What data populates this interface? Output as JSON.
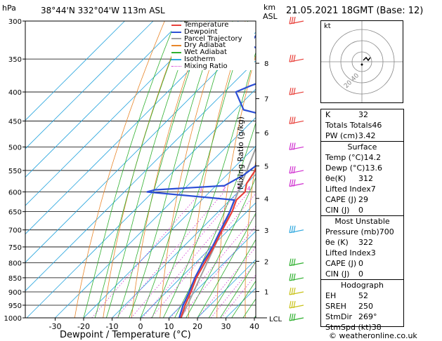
{
  "header": {
    "location": "38°44'N  332°04'W  113m  ASL",
    "datetime": "21.05.2021  18GMT  (Base: 12)",
    "hpa_label": "hPa",
    "km_label": "km",
    "asl_label": "ASL",
    "copyright": "© weatheronline.co.uk"
  },
  "chart_data": {
    "type": "line",
    "xlabel": "Dewpoint / Temperature (°C)",
    "ylabel": "hPa",
    "right_ylabel": "Mixing Ratio (g/kg)",
    "xlim": [
      -35,
      40
    ],
    "ylim": [
      1000,
      300
    ],
    "y_scale": "log",
    "skew": "temperature lines skewed 45°",
    "x_ticks": [
      "-30",
      "-20",
      "-10",
      "0",
      "10",
      "20",
      "30",
      "40"
    ],
    "x_tick_values": [
      -30,
      -20,
      -10,
      0,
      10,
      20,
      30,
      40
    ],
    "pressure_levels": [
      300,
      350,
      400,
      450,
      500,
      550,
      600,
      650,
      700,
      750,
      800,
      850,
      900,
      950,
      1000
    ],
    "pressure_labels": [
      "300",
      "350",
      "400",
      "450",
      "500",
      "550",
      "600",
      "650",
      "700",
      "750",
      "800",
      "850",
      "900",
      "950",
      "1000"
    ],
    "km_ticks": [
      {
        "km": "8",
        "p": 356
      },
      {
        "km": "7",
        "p": 411
      },
      {
        "km": "6",
        "p": 472
      },
      {
        "km": "5",
        "p": 540
      },
      {
        "km": "4",
        "p": 616
      },
      {
        "km": "3",
        "p": 701
      },
      {
        "km": "2",
        "p": 795
      },
      {
        "km": "1",
        "p": 899
      }
    ],
    "lcl_label": "LCL",
    "lcl_p": 1000,
    "mixing_ratio_labels": [
      "1",
      "2",
      "3",
      "4",
      "5",
      "8",
      "10",
      "15",
      "20",
      "25"
    ],
    "mixing_ratio_values": [
      1,
      2,
      3,
      4,
      5,
      8,
      10,
      15,
      20,
      25
    ],
    "legend": [
      "Temperature",
      "Dewpoint",
      "Parcel Trajectory",
      "Dry Adiabat",
      "Wet Adiabat",
      "Isotherm",
      "Mixing Ratio"
    ],
    "colors": {
      "temperature": "#e8403a",
      "dewpoint": "#2d4fd6",
      "parcel": "#a0a0a0",
      "dry_adiabat": "#e8862a",
      "wet_adiabat": "#2fb02f",
      "isotherm": "#2ba6de",
      "mixing_ratio": "#d02fd0"
    },
    "series": [
      {
        "name": "Temperature",
        "points": [
          [
            1000,
            14.2
          ],
          [
            950,
            11.2
          ],
          [
            900,
            8.6
          ],
          [
            850,
            5.5
          ],
          [
            800,
            3.2
          ],
          [
            750,
            0.8
          ],
          [
            700,
            -2.2
          ],
          [
            650,
            -5.2
          ],
          [
            620,
            -7.8
          ],
          [
            600,
            -7.6
          ],
          [
            580,
            -10
          ],
          [
            550,
            -11.6
          ],
          [
            500,
            -16.8
          ],
          [
            450,
            -22
          ],
          [
            400,
            -29
          ],
          [
            350,
            -38
          ],
          [
            330,
            -39
          ],
          [
            300,
            -45
          ]
        ]
      },
      {
        "name": "Dewpoint",
        "points": [
          [
            1000,
            13.6
          ],
          [
            950,
            10.5
          ],
          [
            900,
            8
          ],
          [
            850,
            5
          ],
          [
            800,
            2.5
          ],
          [
            750,
            0.3
          ],
          [
            700,
            -2.8
          ],
          [
            650,
            -6
          ],
          [
            620,
            -8.5
          ],
          [
            600,
            -42
          ],
          [
            595,
            -40
          ],
          [
            585,
            -17
          ],
          [
            560,
            -14
          ],
          [
            540,
            -13
          ],
          [
            500,
            -18
          ],
          [
            470,
            -22
          ],
          [
            440,
            -27
          ],
          [
            430,
            -37
          ],
          [
            400,
            -46
          ],
          [
            390,
            -43
          ],
          [
            380,
            -39
          ],
          [
            370,
            -45
          ],
          [
            350,
            -45
          ],
          [
            340,
            -50
          ],
          [
            330,
            -58
          ],
          [
            300,
            -60
          ]
        ]
      },
      {
        "name": "Parcel Trajectory",
        "points": [
          [
            1000,
            14.2
          ],
          [
            950,
            12
          ],
          [
            900,
            9.5
          ],
          [
            850,
            6.8
          ],
          [
            800,
            4
          ],
          [
            750,
            1
          ],
          [
            700,
            -2.2
          ],
          [
            650,
            -6
          ],
          [
            600,
            -10
          ],
          [
            550,
            -14.5
          ],
          [
            500,
            -19.5
          ],
          [
            450,
            -25
          ],
          [
            400,
            -31.5
          ],
          [
            350,
            -39
          ],
          [
            300,
            -48
          ]
        ]
      }
    ]
  },
  "hodograph": {
    "label": "kt",
    "ring_labels": [
      "20",
      "40"
    ]
  },
  "table": {
    "top": [
      {
        "label": "K",
        "value": "32"
      },
      {
        "label": "Totals Totals",
        "value": "46"
      },
      {
        "label": "PW (cm)",
        "value": "3.42"
      }
    ],
    "surface_title": "Surface",
    "surface": [
      {
        "label": "Temp (°C)",
        "value": "14.2"
      },
      {
        "label": "Dewp (°C)",
        "value": "13.6"
      },
      {
        "label": "θe(K)",
        "value": "312"
      },
      {
        "label": "Lifted Index",
        "value": "7"
      },
      {
        "label": "CAPE (J)",
        "value": "29"
      },
      {
        "label": "CIN (J)",
        "value": "0"
      }
    ],
    "unstable_title": "Most Unstable",
    "unstable": [
      {
        "label": "Pressure (mb)",
        "value": "700"
      },
      {
        "label": "θe (K)",
        "value": "322"
      },
      {
        "label": "Lifted Index",
        "value": "3"
      },
      {
        "label": "CAPE (J)",
        "value": "0"
      },
      {
        "label": "CIN (J)",
        "value": "0"
      }
    ],
    "hodo_title": "Hodograph",
    "hodo": [
      {
        "label": "EH",
        "value": "52"
      },
      {
        "label": "SREH",
        "value": "250"
      },
      {
        "label": "StmDir",
        "value": "269°"
      },
      {
        "label": "StmSpd (kt)",
        "value": "38"
      }
    ]
  }
}
